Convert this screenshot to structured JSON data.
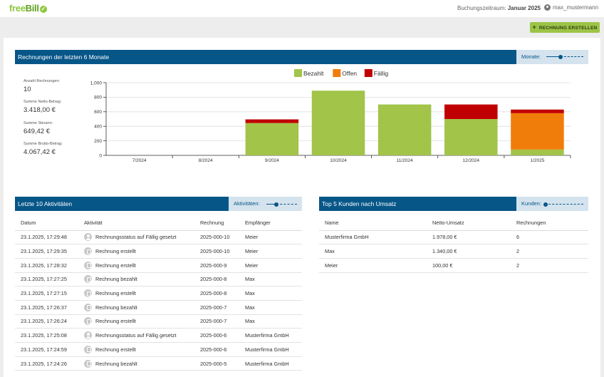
{
  "app": {
    "logo_text_a": "free",
    "logo_text_b": "Bill",
    "logo_check": "✓",
    "period_label": "Buchungszeitraum:",
    "period_value": "Januar 2025",
    "user_name": "max_mustermann"
  },
  "toolbar": {
    "create_label": "RECHNUNG ERSTELLEN",
    "create_icon": "+"
  },
  "invoices_panel": {
    "title": "Rechnungen der letzten 6 Monate",
    "slider_label": "Monate:",
    "slider_value": 0.45,
    "stats": [
      {
        "label": "Anzahl Rechnungen:",
        "value": "10"
      },
      {
        "label": "Summe Netto-Betrag:",
        "value": "3.418,00 €"
      },
      {
        "label": "Summe Steuern:",
        "value": "649,42 €"
      },
      {
        "label": "Summe Brutto-Betrag:",
        "value": "4.067,42 €"
      }
    ]
  },
  "chart_data": {
    "type": "bar",
    "stacked": true,
    "categories": [
      "7/2024",
      "8/2024",
      "9/2024",
      "10/2024",
      "11/2024",
      "12/2024",
      "1/2025"
    ],
    "series": [
      {
        "name": "Bezahlt",
        "color": "#a1c449",
        "values": [
          0,
          0,
          445,
          890,
          700,
          500,
          80
        ]
      },
      {
        "name": "Offen",
        "color": "#f07d0a",
        "values": [
          0,
          0,
          0,
          0,
          0,
          0,
          500
        ]
      },
      {
        "name": "Fällig",
        "color": "#c00000",
        "values": [
          0,
          0,
          50,
          0,
          0,
          200,
          50
        ]
      }
    ],
    "y_ticks": [
      "0",
      "200",
      "400",
      "600",
      "800",
      "1,000"
    ],
    "ylim": [
      0,
      1000
    ],
    "legend_position": "top-center",
    "grid": true
  },
  "activities_panel": {
    "title": "Letzte 10 Aktivitäten",
    "slider_label": "Aktivitäten:",
    "slider_value": 0.25,
    "columns": [
      "Datum",
      "Aktivität",
      "Rechnung",
      "Empfänger"
    ],
    "rows": [
      {
        "date": "23.1.2025, 17:29:48",
        "icon": "person-icon",
        "activity": "Rechnungsstatus auf Fällig gesetzt",
        "invoice": "2025-000-10",
        "recipient": "Meier"
      },
      {
        "date": "23.1.2025, 17:29:35",
        "icon": "document-icon",
        "activity": "Rechnung erstellt",
        "invoice": "2025-000-10",
        "recipient": "Meier"
      },
      {
        "date": "23.1.2025, 17:28:32",
        "icon": "document-icon",
        "activity": "Rechnung erstellt",
        "invoice": "2025-000-9",
        "recipient": "Meier"
      },
      {
        "date": "23.1.2025, 17:27:25",
        "icon": "document-icon",
        "activity": "Rechnung bezahlt",
        "invoice": "2025-000-8",
        "recipient": "Max"
      },
      {
        "date": "23.1.2025, 17:27:15",
        "icon": "document-icon",
        "activity": "Rechnung erstellt",
        "invoice": "2025-000-8",
        "recipient": "Max"
      },
      {
        "date": "23.1.2025, 17:26:37",
        "icon": "document-icon",
        "activity": "Rechnung bezahlt",
        "invoice": "2025-000-7",
        "recipient": "Max"
      },
      {
        "date": "23.1.2025, 17:26:24",
        "icon": "document-icon",
        "activity": "Rechnung erstellt",
        "invoice": "2025-000-7",
        "recipient": "Max"
      },
      {
        "date": "23.1.2025, 17:25:08",
        "icon": "person-icon",
        "activity": "Rechnungsstatus auf Fällig gesetzt",
        "invoice": "2025-000-6",
        "recipient": "Musterfirma GmbH"
      },
      {
        "date": "23.1.2025, 17:24:59",
        "icon": "document-icon",
        "activity": "Rechnung erstellt",
        "invoice": "2025-000-6",
        "recipient": "Musterfirma GmbH"
      },
      {
        "date": "23.1.2025, 17:24:26",
        "icon": "document-icon",
        "activity": "Rechnung bezahlt",
        "invoice": "2025-000-5",
        "recipient": "Musterfirma GmbH"
      }
    ]
  },
  "customers_panel": {
    "title": "Top 5 Kunden nach Umsatz",
    "slider_label": "Kunden:",
    "slider_value": 0.05,
    "columns": [
      "Name",
      "Netto-Umsatz",
      "Rechnungen"
    ],
    "rows": [
      {
        "name": "Musterfirma GmbH",
        "revenue": "1.978,00 €",
        "count": "6"
      },
      {
        "name": "Max",
        "revenue": "1.340,00 €",
        "count": "2"
      },
      {
        "name": "Meier",
        "revenue": "100,00 €",
        "count": "2"
      }
    ]
  }
}
